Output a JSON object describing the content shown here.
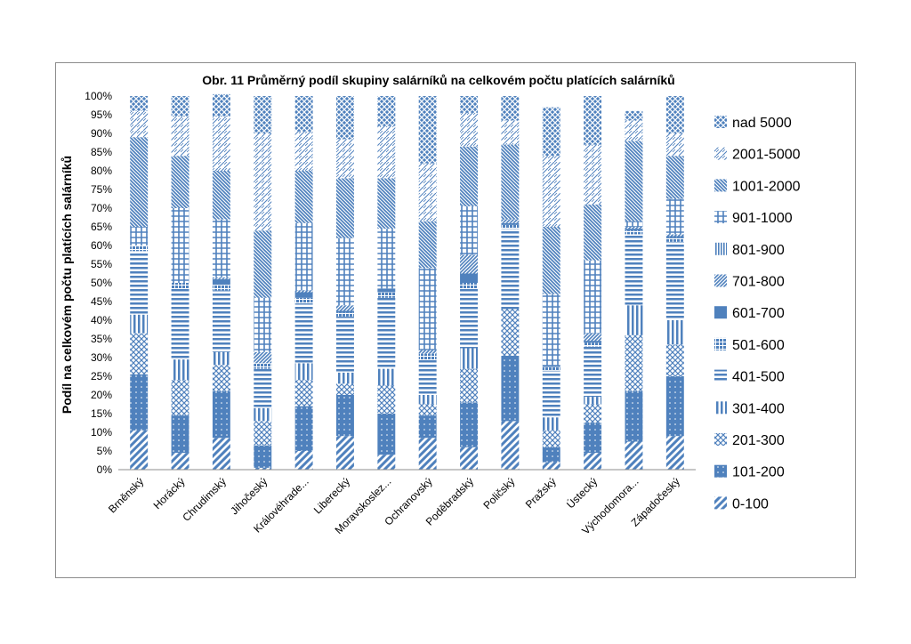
{
  "chart_data": {
    "type": "bar",
    "stacked": true,
    "title": "Obr. 11  Průměrný podíl skupiny salárníků  na celkovém počtu platících salárníků",
    "xlabel": "",
    "ylabel": "Podíl  na celkovém počtu platících  salárníků",
    "ylim": [
      0,
      100
    ],
    "y_ticks": [
      "0%",
      "5%",
      "10%",
      "15%",
      "20%",
      "25%",
      "30%",
      "35%",
      "40%",
      "45%",
      "50%",
      "55%",
      "60%",
      "65%",
      "70%",
      "75%",
      "80%",
      "85%",
      "90%",
      "95%",
      "100%"
    ],
    "grid": false,
    "legend_position": "right",
    "categories": [
      "Brněnský",
      "Horácký",
      "Chrudimský",
      "Jihočeský",
      "Královéhrade...",
      "Liberecký",
      "Moravskoslez...",
      "Ochranovský",
      "Poděbradský",
      "Poličský",
      "Pražský",
      "Ústecký",
      "Východomora...",
      "Západočeský"
    ],
    "series": [
      {
        "name": "0-100",
        "values": [
          10.5,
          4.5,
          8.5,
          0.5,
          5.0,
          9.0,
          4.0,
          8.5,
          6.0,
          13.0,
          2.0,
          4.5,
          7.5,
          9.0
        ]
      },
      {
        "name": "101-200",
        "values": [
          15.0,
          10.0,
          12.5,
          6.0,
          12.0,
          11.0,
          11.0,
          6.0,
          12.0,
          17.5,
          4.0,
          8.0,
          13.5,
          16.0
        ]
      },
      {
        "name": "201-300",
        "values": [
          11.0,
          9.5,
          7.0,
          6.5,
          7.0,
          3.0,
          7.5,
          3.0,
          9.0,
          12.5,
          4.5,
          5.0,
          15.0,
          8.5
        ]
      },
      {
        "name": "301-400",
        "values": [
          5.0,
          5.5,
          3.5,
          3.5,
          4.5,
          3.0,
          4.5,
          2.5,
          5.5,
          0.0,
          3.5,
          2.0,
          8.0,
          6.5
        ]
      },
      {
        "name": "401-500",
        "values": [
          17.0,
          19.0,
          16.5,
          10.5,
          16.0,
          15.0,
          19.0,
          9.5,
          16.0,
          21.5,
          12.5,
          13.5,
          19.0,
          21.0
        ]
      },
      {
        "name": "501-600",
        "values": [
          1.5,
          1.5,
          1.5,
          1.5,
          1.5,
          1.0,
          1.5,
          1.5,
          1.5,
          1.0,
          1.0,
          1.0,
          1.0,
          1.0
        ]
      },
      {
        "name": "601-700",
        "values": [
          0.0,
          0.0,
          1.5,
          0.0,
          1.5,
          0.5,
          1.0,
          0.0,
          2.5,
          0.5,
          0.5,
          0.5,
          0.5,
          0.5
        ]
      },
      {
        "name": "701-800",
        "values": [
          0.0,
          0.0,
          0.5,
          3.0,
          0.5,
          1.5,
          0.0,
          1.0,
          5.0,
          1.0,
          0.0,
          2.0,
          0.5,
          0.5
        ]
      },
      {
        "name": "801-900",
        "values": [
          0.0,
          0.0,
          0.0,
          0.0,
          0.0,
          0.0,
          0.0,
          0.0,
          0.0,
          0.0,
          0.0,
          0.0,
          0.0,
          0.0
        ]
      },
      {
        "name": "901-1000",
        "values": [
          5.0,
          20.0,
          15.5,
          14.5,
          18.0,
          18.0,
          16.0,
          22.0,
          13.0,
          0.0,
          19.0,
          19.5,
          1.5,
          9.5
        ]
      },
      {
        "name": "1001-2000",
        "values": [
          24.0,
          14.0,
          13.0,
          18.0,
          14.0,
          16.0,
          13.5,
          12.5,
          16.0,
          20.0,
          18.0,
          15.0,
          21.5,
          11.5
        ]
      },
      {
        "name": "2001-5000",
        "values": [
          7.0,
          10.5,
          14.5,
          26.0,
          10.5,
          10.5,
          14.0,
          15.5,
          9.0,
          6.5,
          19.0,
          16.0,
          5.5,
          6.0
        ]
      },
      {
        "name": "nad 5000",
        "values": [
          4.0,
          5.5,
          6.0,
          10.0,
          9.5,
          11.5,
          8.0,
          18.0,
          4.5,
          6.5,
          13.0,
          13.0,
          2.5,
          10.0
        ]
      }
    ],
    "colors": {
      "bar": "#4f81bd",
      "bar_light": "#a7c0de",
      "axis": "#8c8c8c",
      "frame": "#8c8c8c"
    }
  }
}
